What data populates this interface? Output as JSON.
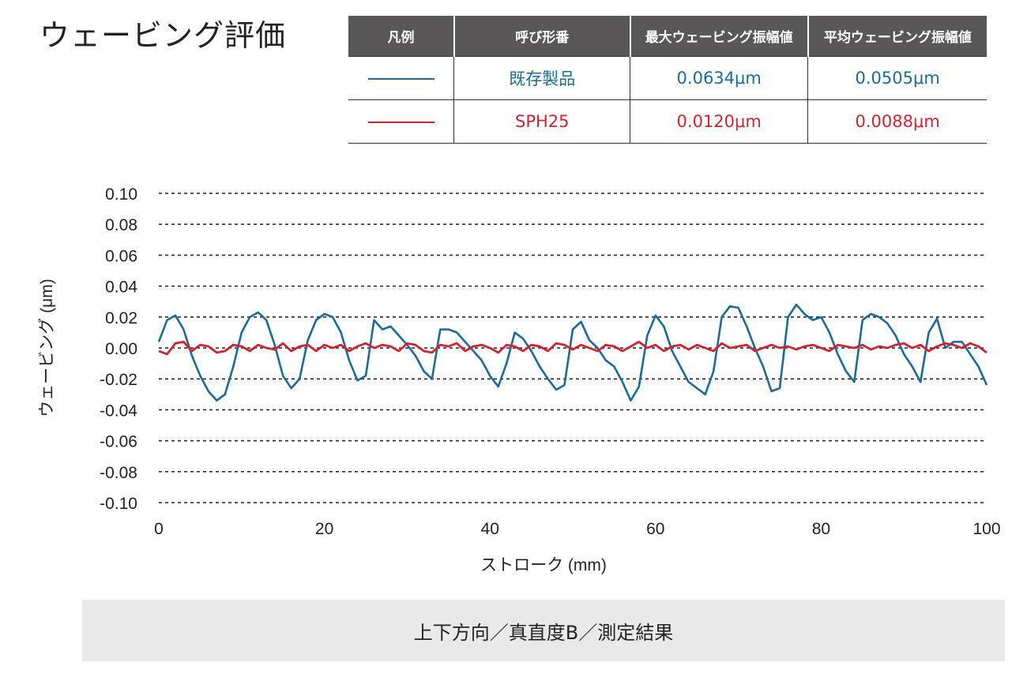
{
  "title": "ウェービング評価",
  "legend_table": {
    "headers": [
      "凡例",
      "呼び形番",
      "最大ウェービング振幅値",
      "平均ウェービング振幅値"
    ],
    "rows": [
      {
        "name": "既存製品",
        "max": "0.0634μm",
        "avg": "0.0505μm",
        "color": "#1b6a98"
      },
      {
        "name": "SPH25",
        "max": "0.0120μm",
        "avg": "0.0088μm",
        "color": "#cc2431"
      }
    ]
  },
  "caption": "上下方向／真直度B／測定結果",
  "chart_data": {
    "type": "line",
    "title": "ウェービング評価",
    "xlabel": "ストローク (mm)",
    "ylabel": "ウェービング (μm)",
    "xlim": [
      0,
      100
    ],
    "ylim": [
      -0.1,
      0.1
    ],
    "xticks": [
      "0",
      "20",
      "40",
      "60",
      "80",
      "100"
    ],
    "yticks": [
      "0.10",
      "0.08",
      "0.06",
      "0.04",
      "0.02",
      "0.00",
      "-0.02",
      "-0.04",
      "-0.06",
      "-0.08",
      "-0.10"
    ],
    "grid": "horizontal dashed",
    "series": [
      {
        "name": "既存製品",
        "color": "#1b6a98",
        "x": [
          0,
          1,
          2,
          3,
          4,
          5,
          6,
          7,
          8,
          9,
          10,
          11,
          12,
          13,
          14,
          15,
          16,
          17,
          18,
          19,
          20,
          21,
          22,
          23,
          24,
          25,
          26,
          27,
          28,
          29,
          30,
          31,
          32,
          33,
          34,
          35,
          36,
          37,
          38,
          39,
          40,
          41,
          42,
          43,
          44,
          45,
          46,
          47,
          48,
          49,
          50,
          51,
          52,
          53,
          54,
          55,
          56,
          57,
          58,
          59,
          60,
          61,
          62,
          63,
          64,
          65,
          66,
          67,
          68,
          69,
          70,
          71,
          72,
          73,
          74,
          75,
          76,
          77,
          78,
          79,
          80,
          81,
          82,
          83,
          84,
          85,
          86,
          87,
          88,
          89,
          90,
          91,
          92,
          93,
          94,
          95,
          96,
          97,
          98,
          99,
          100
        ],
        "y": [
          0.004,
          0.018,
          0.021,
          0.012,
          -0.005,
          -0.018,
          -0.028,
          -0.034,
          -0.03,
          -0.012,
          0.01,
          0.02,
          0.023,
          0.018,
          0.002,
          -0.018,
          -0.026,
          -0.02,
          0.005,
          0.018,
          0.022,
          0.02,
          0.01,
          -0.008,
          -0.021,
          -0.018,
          0.018,
          0.012,
          0.014,
          0.008,
          0.002,
          -0.005,
          -0.015,
          -0.02,
          0.012,
          0.012,
          0.01,
          0.004,
          -0.002,
          -0.008,
          -0.018,
          -0.025,
          -0.01,
          0.01,
          0.006,
          -0.002,
          -0.012,
          -0.02,
          -0.027,
          -0.024,
          0.012,
          0.017,
          0.005,
          0.0,
          -0.008,
          -0.012,
          -0.022,
          -0.034,
          -0.025,
          0.008,
          0.021,
          0.014,
          -0.002,
          -0.012,
          -0.022,
          -0.026,
          -0.03,
          -0.015,
          0.02,
          0.027,
          0.026,
          0.014,
          0.0,
          -0.012,
          -0.028,
          -0.026,
          0.02,
          0.028,
          0.022,
          0.018,
          0.02,
          0.01,
          -0.004,
          -0.015,
          -0.022,
          0.018,
          0.022,
          0.02,
          0.016,
          0.008,
          -0.004,
          -0.012,
          -0.022,
          0.01,
          0.019,
          0.0,
          0.004,
          0.004,
          -0.004,
          -0.012,
          -0.024
        ]
      },
      {
        "name": "SPH25",
        "color": "#cc2431",
        "x": [
          0,
          1,
          2,
          3,
          4,
          5,
          6,
          7,
          8,
          9,
          10,
          11,
          12,
          13,
          14,
          15,
          16,
          17,
          18,
          19,
          20,
          21,
          22,
          23,
          24,
          25,
          26,
          27,
          28,
          29,
          30,
          31,
          32,
          33,
          34,
          35,
          36,
          37,
          38,
          39,
          40,
          41,
          42,
          43,
          44,
          45,
          46,
          47,
          48,
          49,
          50,
          51,
          52,
          53,
          54,
          55,
          56,
          57,
          58,
          59,
          60,
          61,
          62,
          63,
          64,
          65,
          66,
          67,
          68,
          69,
          70,
          71,
          72,
          73,
          74,
          75,
          76,
          77,
          78,
          79,
          80,
          81,
          82,
          83,
          84,
          85,
          86,
          87,
          88,
          89,
          90,
          91,
          92,
          93,
          94,
          95,
          96,
          97,
          98,
          99,
          100
        ],
        "y": [
          -0.002,
          -0.004,
          0.003,
          0.004,
          -0.002,
          0.002,
          0.001,
          -0.003,
          -0.002,
          0.002,
          0.001,
          -0.002,
          0.002,
          0.0,
          -0.001,
          0.003,
          -0.002,
          0.001,
          0.002,
          -0.002,
          0.002,
          0.0,
          0.002,
          -0.002,
          0.001,
          0.003,
          0.0,
          0.002,
          0.001,
          -0.002,
          0.003,
          0.002,
          -0.002,
          -0.003,
          0.002,
          0.001,
          0.003,
          -0.002,
          0.001,
          0.002,
          0.0,
          -0.003,
          0.002,
          0.001,
          -0.002,
          0.002,
          0.001,
          -0.002,
          0.003,
          0.002,
          -0.001,
          0.002,
          0.0,
          -0.002,
          0.002,
          0.001,
          -0.002,
          0.001,
          0.004,
          0.0,
          0.002,
          -0.002,
          0.001,
          0.002,
          -0.001,
          0.002,
          0.0,
          -0.002,
          0.003,
          0.0,
          0.001,
          0.002,
          -0.002,
          0.0,
          0.002,
          0.0,
          0.001,
          -0.001,
          0.001,
          0.002,
          0.0,
          -0.002,
          0.002,
          0.001,
          0.0,
          0.002,
          -0.001,
          0.001,
          0.0,
          0.002,
          0.003,
          0.0,
          0.002,
          -0.002,
          0.001,
          0.003,
          0.002,
          0.0,
          0.003,
          0.001,
          -0.003
        ]
      }
    ]
  }
}
